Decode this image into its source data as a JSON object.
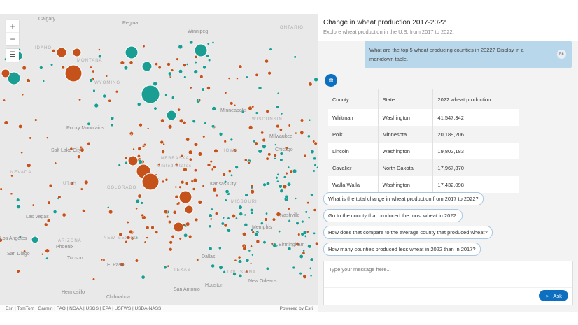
{
  "map": {
    "zoom_in": "+",
    "zoom_out": "−",
    "legend_icon": "list-icon",
    "labels": [
      {
        "text": "Calgary",
        "cls": ""
      },
      {
        "text": "Regina",
        "cls": ""
      },
      {
        "text": "Winnipeg",
        "cls": ""
      },
      {
        "text": "ONTARIO",
        "cls": "state"
      },
      {
        "text": "IDAHO",
        "cls": "state"
      },
      {
        "text": "MONTANA",
        "cls": "state"
      },
      {
        "text": "WYOMING",
        "cls": "state"
      },
      {
        "text": "Salt Lake City",
        "cls": ""
      },
      {
        "text": "NEVADA",
        "cls": "state"
      },
      {
        "text": "UTAH",
        "cls": "state"
      },
      {
        "text": "COLORADO",
        "cls": "state"
      },
      {
        "text": "NEBRASKA",
        "cls": "state"
      },
      {
        "text": "IOWA",
        "cls": "state"
      },
      {
        "text": "Minneapolis",
        "cls": ""
      },
      {
        "text": "WISCONSIN",
        "cls": "state"
      },
      {
        "text": "Milwaukee",
        "cls": ""
      },
      {
        "text": "Chicago",
        "cls": ""
      },
      {
        "text": "Kansas City",
        "cls": ""
      },
      {
        "text": "MISSOURI",
        "cls": "state"
      },
      {
        "text": "Las Vegas",
        "cls": ""
      },
      {
        "text": "Los Angeles",
        "cls": ""
      },
      {
        "text": "San Diego",
        "cls": ""
      },
      {
        "text": "ARIZONA",
        "cls": "state"
      },
      {
        "text": "Phoenix",
        "cls": ""
      },
      {
        "text": "Tucson",
        "cls": ""
      },
      {
        "text": "NEW MEXICO",
        "cls": "state"
      },
      {
        "text": "El Paso",
        "cls": ""
      },
      {
        "text": "Dallas",
        "cls": ""
      },
      {
        "text": "TEXAS",
        "cls": "state"
      },
      {
        "text": "San Antonio",
        "cls": ""
      },
      {
        "text": "Houston",
        "cls": ""
      },
      {
        "text": "Hermosillo",
        "cls": ""
      },
      {
        "text": "Chihuahua",
        "cls": ""
      },
      {
        "text": "LOUISIANA",
        "cls": "state"
      },
      {
        "text": "New Orleans",
        "cls": ""
      },
      {
        "text": "Nashville",
        "cls": ""
      },
      {
        "text": "Memphis",
        "cls": ""
      },
      {
        "text": "Birmingham",
        "cls": ""
      },
      {
        "text": "United States",
        "cls": "state"
      },
      {
        "text": "Rocky Mountains",
        "cls": ""
      }
    ],
    "attribution": "Esri | TomTom | Garmin | FAO | NOAA | USGS | EPA | USFWS | USDA-NASS",
    "powered_by": "Powered by Esri",
    "colors": {
      "decrease": "#c4521a",
      "increase": "#1a9e93"
    }
  },
  "panel": {
    "title": "Change in wheat production 2017-2022",
    "subtitle": "Explore wheat production in the U.S. from 2017 to 2022.",
    "user_message": "What are the top 5 wheat producing counties in 2022? Display in a markdown table.",
    "user_initials": "KE",
    "table": {
      "headers": [
        "County",
        "State",
        "2022 wheat production"
      ],
      "rows": [
        [
          "Whitman",
          "Washington",
          "41,547,342"
        ],
        [
          "Polk",
          "Minnesota",
          "20,189,206"
        ],
        [
          "Lincoln",
          "Washington",
          "19,802,183"
        ],
        [
          "Cavalier",
          "North Dakota",
          "17,967,370"
        ],
        [
          "Walla Walla",
          "Washington",
          "17,432,098"
        ]
      ]
    },
    "suggestions": [
      "What is the total change in wheat production from 2017 to 2022?",
      "Go to the county that produced the most wheat in 2022.",
      "How does that compare to the average county that produced wheat?",
      "How many counties produced less wheat in 2022 than in 2017?"
    ],
    "input_placeholder": "Type your message here...",
    "ask_label": "Ask",
    "accent": "#0d6fbf"
  }
}
